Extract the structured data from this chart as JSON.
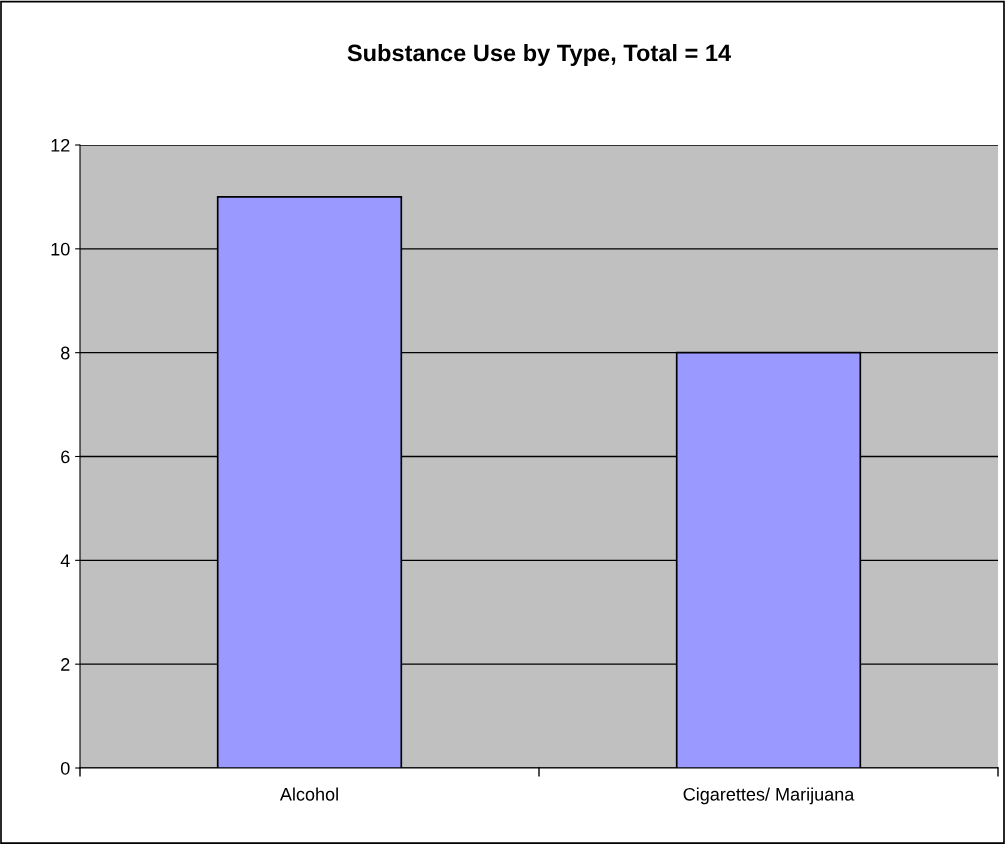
{
  "chart_data": {
    "type": "bar",
    "title": "Substance Use by Type, Total = 14",
    "categories": [
      "Alcohol",
      "Cigarettes/ Marijuana"
    ],
    "values": [
      11,
      8
    ],
    "color": "#9999ff",
    "ylim": [
      0,
      12
    ],
    "yticks": [
      0,
      2,
      4,
      6,
      8,
      10,
      12
    ],
    "grid": "y"
  }
}
